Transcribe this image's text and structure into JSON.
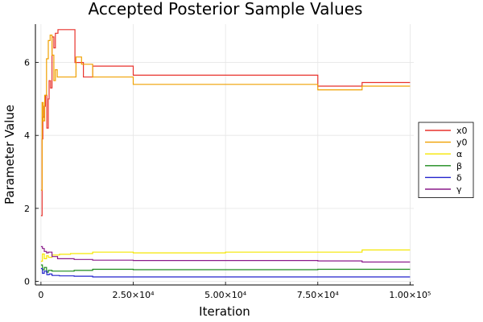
{
  "chart_data": {
    "type": "line",
    "title": "Accepted Posterior Sample Values",
    "xlabel": "Iteration",
    "ylabel": "Parameter Value",
    "xlim": [
      -1500,
      101000
    ],
    "ylim": [
      -0.1,
      7.05
    ],
    "x_ticks": [
      0,
      25000,
      50000,
      75000,
      100000
    ],
    "x_tick_labels": [
      "0",
      "2.50×10⁴",
      "5.00×10⁴",
      "7.50×10⁴",
      "1.00×10⁵"
    ],
    "y_ticks": [
      0,
      2,
      4,
      6
    ],
    "y_tick_labels": [
      "0",
      "2",
      "4",
      "6"
    ],
    "grid": true,
    "legend_position": "right",
    "series": [
      {
        "name": "x0",
        "color": "#e8322c",
        "x": [
          0,
          300,
          500,
          900,
          1200,
          1600,
          2000,
          2200,
          2600,
          3000,
          3500,
          3900,
          4600,
          9200,
          11500,
          14000,
          25000,
          75000,
          87000,
          100000
        ],
        "y": [
          1.8,
          3.9,
          4.5,
          4.8,
          5.1,
          4.2,
          5.0,
          5.5,
          5.3,
          6.7,
          6.4,
          6.8,
          6.9,
          6.0,
          5.6,
          5.9,
          5.65,
          5.35,
          5.45,
          5.45
        ]
      },
      {
        "name": "y0",
        "color": "#f0a000",
        "x": [
          0,
          300,
          600,
          1000,
          1500,
          2000,
          2500,
          3000,
          3500,
          3900,
          4400,
          9500,
          11000,
          14000,
          25000,
          75000,
          87000,
          100000
        ],
        "y": [
          2.5,
          4.9,
          4.4,
          5.1,
          6.1,
          6.6,
          6.75,
          6.2,
          5.5,
          5.8,
          5.6,
          6.15,
          5.95,
          5.6,
          5.4,
          5.25,
          5.35,
          5.35
        ]
      },
      {
        "name": "α",
        "color": "#f5e600",
        "x": [
          0,
          400,
          900,
          1500,
          2000,
          3000,
          5000,
          8000,
          14000,
          25000,
          50000,
          87000,
          100000
        ],
        "y": [
          0.55,
          0.75,
          0.62,
          0.7,
          0.66,
          0.72,
          0.74,
          0.76,
          0.8,
          0.78,
          0.8,
          0.86,
          0.86
        ]
      },
      {
        "name": "β",
        "color": "#1a8a1a",
        "x": [
          0,
          400,
          900,
          1500,
          2000,
          3000,
          5000,
          9000,
          14000,
          25000,
          75000,
          100000
        ],
        "y": [
          0.45,
          0.32,
          0.38,
          0.25,
          0.3,
          0.28,
          0.28,
          0.3,
          0.33,
          0.32,
          0.33,
          0.33
        ]
      },
      {
        "name": "δ",
        "color": "#2222cc",
        "x": [
          0,
          400,
          900,
          1600,
          2200,
          3000,
          5000,
          9000,
          14000,
          25000,
          75000,
          100000
        ],
        "y": [
          0.35,
          0.22,
          0.28,
          0.18,
          0.2,
          0.16,
          0.15,
          0.14,
          0.12,
          0.12,
          0.12,
          0.12
        ]
      },
      {
        "name": "γ",
        "color": "#8a1a8a",
        "x": [
          0,
          400,
          900,
          1500,
          2000,
          3000,
          4500,
          9000,
          14000,
          25000,
          75000,
          87000,
          100000
        ],
        "y": [
          0.95,
          0.9,
          0.82,
          0.78,
          0.8,
          0.68,
          0.62,
          0.6,
          0.58,
          0.57,
          0.56,
          0.53,
          0.53
        ]
      }
    ]
  }
}
